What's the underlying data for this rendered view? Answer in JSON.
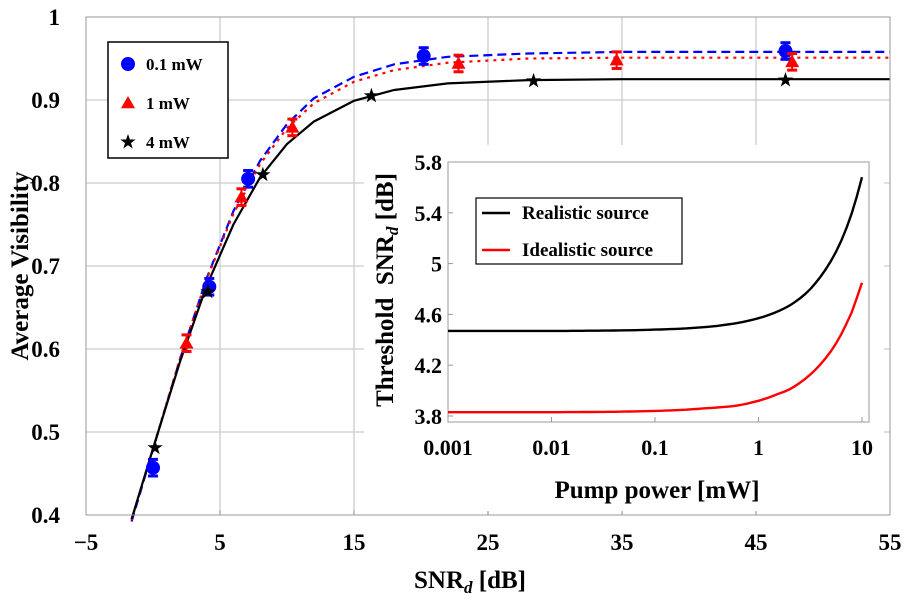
{
  "chart_data": [
    {
      "type": "scatter",
      "xlabel": {
        "main": "SNR",
        "sub": "d",
        "rest": " [dB]"
      },
      "ylabel": "Average Visibility",
      "xlim": [
        -5,
        55
      ],
      "ylim": [
        0.4,
        1.0
      ],
      "xticks": [
        "−5",
        "5",
        "15",
        "25",
        "35",
        "45",
        "55"
      ],
      "xtick_values": [
        -5,
        5,
        15,
        25,
        35,
        45,
        55
      ],
      "yticks": [
        "0.4",
        "0.5",
        "0.6",
        "0.7",
        "0.8",
        "0.9",
        "1"
      ],
      "ytick_values": [
        0.4,
        0.5,
        0.6,
        0.7,
        0.8,
        0.9,
        1.0
      ],
      "grid": true,
      "legend_placement": "top-left",
      "series": [
        {
          "name": "0.1 mW",
          "color": "#0000ff",
          "marker": "circle",
          "line": "dashed",
          "points": [
            [
              0.0,
              0.457
            ],
            [
              4.2,
              0.675
            ],
            [
              7.1,
              0.805
            ],
            [
              20.2,
              0.953
            ],
            [
              47.2,
              0.959
            ]
          ],
          "error": 0.01,
          "fit_x": [
            -1.6,
            0,
            2,
            4,
            6,
            8,
            10,
            12,
            15,
            18,
            22,
            28,
            35,
            45,
            55
          ],
          "fit_y": [
            0.392,
            0.479,
            0.587,
            0.685,
            0.766,
            0.827,
            0.871,
            0.902,
            0.928,
            0.943,
            0.952,
            0.956,
            0.958,
            0.958,
            0.958
          ]
        },
        {
          "name": "1 mW",
          "color": "#ff0000",
          "marker": "triangle",
          "line": "dotted",
          "points": [
            [
              2.5,
              0.607
            ],
            [
              6.6,
              0.783
            ],
            [
              10.4,
              0.867
            ],
            [
              22.8,
              0.944
            ],
            [
              34.6,
              0.948
            ],
            [
              47.7,
              0.946
            ]
          ],
          "error": 0.01,
          "fit_x": [
            -1.6,
            0,
            2,
            4,
            6,
            8,
            10,
            12,
            15,
            18,
            22,
            28,
            35,
            45,
            55
          ],
          "fit_y": [
            0.394,
            0.48,
            0.588,
            0.684,
            0.763,
            0.823,
            0.866,
            0.896,
            0.922,
            0.936,
            0.945,
            0.95,
            0.951,
            0.951,
            0.951
          ]
        },
        {
          "name": "4 mW",
          "color": "#000000",
          "marker": "star",
          "line": "solid",
          "points": [
            [
              0.15,
              0.481
            ],
            [
              4.1,
              0.669
            ],
            [
              8.2,
              0.81
            ],
            [
              16.3,
              0.905
            ],
            [
              28.4,
              0.923
            ],
            [
              47.2,
              0.924
            ]
          ],
          "error": 0,
          "fit_x": [
            -1.6,
            0,
            2,
            4,
            6,
            8,
            10,
            12,
            15,
            18,
            22,
            28,
            35,
            45,
            55
          ],
          "fit_y": [
            0.395,
            0.48,
            0.584,
            0.676,
            0.75,
            0.807,
            0.847,
            0.874,
            0.899,
            0.912,
            0.92,
            0.924,
            0.925,
            0.925,
            0.925
          ]
        }
      ]
    },
    {
      "type": "line",
      "xlabel": "Pump power [mW]",
      "ylabel": {
        "main": "Threshold  SNR",
        "sub": "d",
        "rest": " [dB]"
      },
      "xscale": "log",
      "xlim": [
        0.001,
        10
      ],
      "ylim": [
        3.75,
        5.8
      ],
      "xticks": [
        "0.001",
        "0.01",
        "0.1",
        "1",
        "10"
      ],
      "xtick_values": [
        0.001,
        0.01,
        0.1,
        1,
        10
      ],
      "yticks": [
        "3.8",
        "4.2",
        "4.6",
        "5",
        "5.4",
        "5.8"
      ],
      "ytick_values": [
        3.8,
        4.2,
        4.6,
        5.0,
        5.4,
        5.8
      ],
      "grid": false,
      "legend_placement": "top-left",
      "series": [
        {
          "name": "Realistic source",
          "color": "#000000",
          "x": [
            0.001,
            0.01,
            0.1,
            0.3,
            0.6,
            1,
            1.5,
            2,
            3,
            4,
            5,
            6,
            7,
            8,
            9,
            10
          ],
          "y": [
            4.47,
            4.47,
            4.48,
            4.5,
            4.53,
            4.57,
            4.62,
            4.67,
            4.78,
            4.9,
            5.02,
            5.14,
            5.27,
            5.4,
            5.54,
            5.68
          ]
        },
        {
          "name": "Idealistic source",
          "color": "#ff0000",
          "x": [
            0.001,
            0.01,
            0.1,
            0.3,
            0.6,
            1,
            1.5,
            2,
            3,
            4,
            5,
            6,
            7,
            8,
            9,
            10
          ],
          "y": [
            3.83,
            3.83,
            3.84,
            3.86,
            3.88,
            3.92,
            3.97,
            4.01,
            4.11,
            4.21,
            4.31,
            4.41,
            4.52,
            4.62,
            4.74,
            4.85
          ]
        }
      ]
    }
  ]
}
